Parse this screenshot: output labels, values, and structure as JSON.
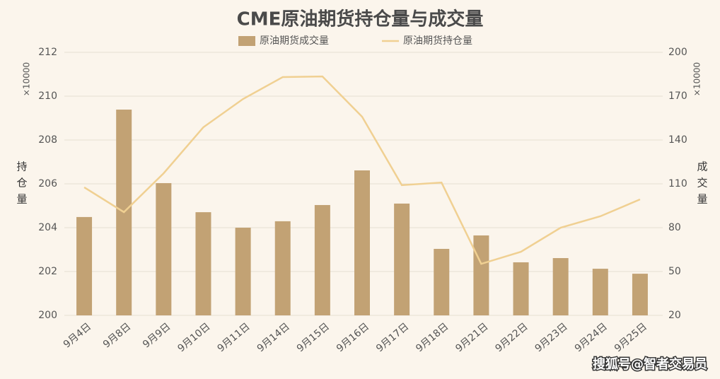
{
  "chart_data": {
    "type": "bar_line",
    "title": "CME原油期货持仓量与成交量",
    "ylabel": "持仓量",
    "y2label": "成交量",
    "yunit": "×10000",
    "y2unit": "×10000",
    "watermark": "搜狐号@智者交易员",
    "categories": [
      "9月4日",
      "9月8日",
      "9月9日",
      "9月10日",
      "9月11日",
      "9月14日",
      "9月15日",
      "9月16日",
      "9月17日",
      "9月18日",
      "9月21日",
      "9月22日",
      "9月23日",
      "9月24日",
      "9月25日"
    ],
    "series": [
      {
        "name": "原油期货成交量",
        "type": "bar",
        "axis": "y2",
        "color": "#c2a274",
        "values": [
          87.3,
          160.8,
          110.5,
          90.6,
          80,
          84.4,
          95.5,
          119.2,
          96.5,
          65.5,
          74.7,
          56.3,
          59.2,
          51.9,
          48.5
        ]
      },
      {
        "name": "原油期货持仓量",
        "type": "line",
        "color": "#f0d092",
        "values": [
          205.84,
          204.71,
          206.48,
          208.58,
          209.87,
          210.87,
          210.9,
          209.06,
          205.94,
          206.06,
          202.35,
          202.9,
          204.0,
          204.52,
          205.29
        ]
      }
    ],
    "ylim": [
      200,
      212
    ],
    "yticks": [
      200,
      202,
      204,
      206,
      208,
      210,
      212
    ],
    "y2lim": [
      20,
      200
    ],
    "y2ticks": [
      20,
      50,
      80,
      110,
      140,
      170,
      200
    ],
    "grid": true
  }
}
